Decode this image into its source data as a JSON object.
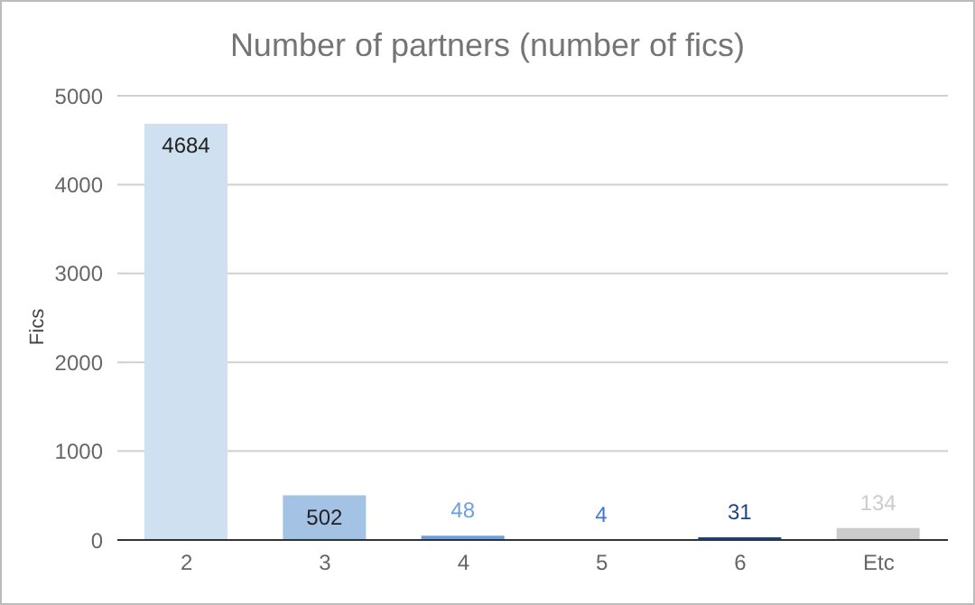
{
  "chart_data": {
    "type": "bar",
    "title": "Number of partners (number of fics)",
    "ylabel": "Fics",
    "categories": [
      "2",
      "3",
      "4",
      "5",
      "6",
      "Etc"
    ],
    "values": [
      4684,
      502,
      48,
      4,
      31,
      134
    ],
    "colors": [
      "#cfe0f1",
      "#a4c2e4",
      "#6fa0dc",
      "#3c78d8",
      "#1c4587",
      "#cccccc"
    ],
    "ylim": [
      0,
      5000
    ],
    "yticks": [
      0,
      1000,
      2000,
      3000,
      4000,
      5000
    ],
    "grid": "y",
    "data_labels": true
  }
}
